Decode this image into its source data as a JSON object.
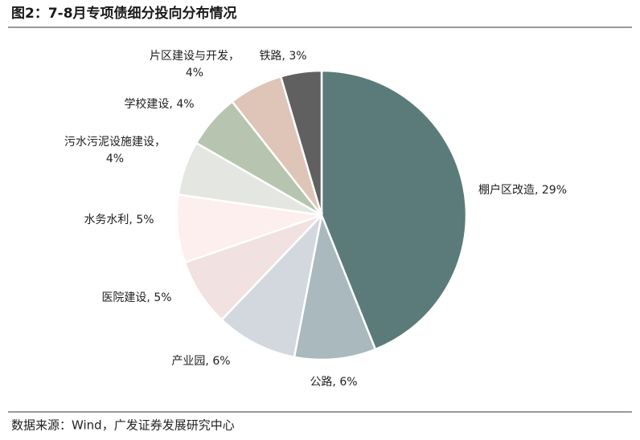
{
  "chart_data": {
    "type": "pie",
    "title": "图2：7-8月专项债细分投向分布情况",
    "categories": [
      "棚户区改造",
      "公路",
      "产业园",
      "医院建设",
      "水务水利",
      "污水污泥设施建设",
      "学校建设",
      "片区建设与开发",
      "铁路"
    ],
    "values": [
      29,
      6,
      6,
      5,
      5,
      4,
      4,
      4,
      3
    ],
    "value_labels": [
      "棚户区改造, 29%",
      "公路, 6%",
      "产业园, 6%",
      "医院建设, 5%",
      "水务水利, 5%",
      "污水污泥设施建设，\n4%",
      "学校建设, 4%",
      "片区建设与开发，\n4%",
      "铁路, 3%"
    ],
    "colors": [
      "#5b7b7a",
      "#a9b9be",
      "#d3d8df",
      "#f1e1e1",
      "#fcefee",
      "#e3e6e1",
      "#b6c4b0",
      "#dfc4b8",
      "#606060"
    ],
    "source": "数据来源：Wind，广发证券发展研究中心"
  }
}
